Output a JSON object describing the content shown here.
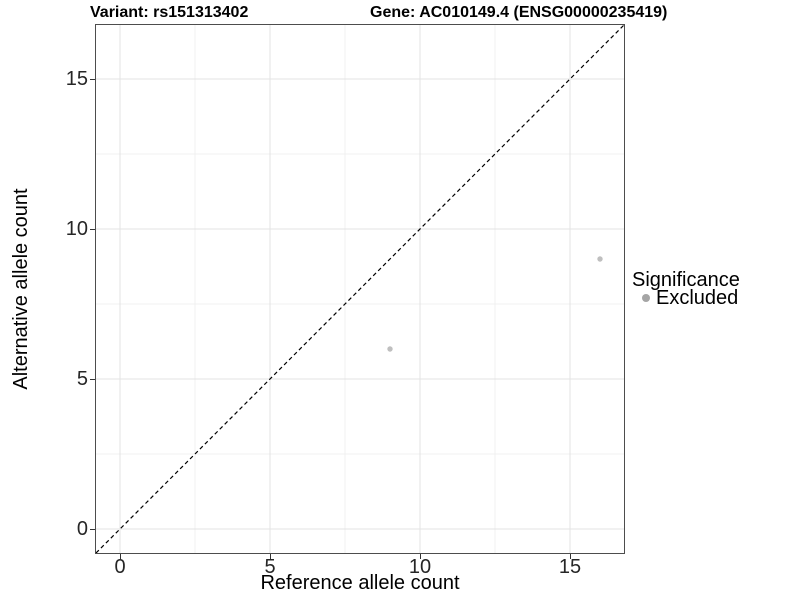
{
  "header": {
    "variant_title": "Variant: rs151313402",
    "gene_title": "Gene: AC010149.4 (ENSG00000235419)"
  },
  "axes": {
    "x_label": "Reference allele count",
    "y_label": "Alternative allele count",
    "x_tick_labels": [
      "0",
      "5",
      "10",
      "15"
    ],
    "y_tick_labels": [
      "0",
      "5",
      "10",
      "15"
    ]
  },
  "legend": {
    "title": "Significance",
    "items": [
      {
        "label": "Excluded",
        "color": "#a5a5a5"
      }
    ]
  },
  "chart_data": {
    "type": "scatter",
    "title": "Variant: rs151313402 — Gene: AC010149.4 (ENSG00000235419)",
    "xlabel": "Reference allele count",
    "ylabel": "Alternative allele count",
    "xlim": [
      -0.8,
      16.8
    ],
    "ylim": [
      -0.8,
      16.8
    ],
    "x_ticks": [
      0,
      5,
      10,
      15
    ],
    "y_ticks": [
      0,
      5,
      10,
      15
    ],
    "x_minor_gridlines": [
      2.5,
      7.5,
      12.5
    ],
    "y_minor_gridlines": [
      2.5,
      7.5,
      12.5
    ],
    "grid": "major and minor gridlines, light gray on white panel",
    "legend_position": "right",
    "legend_title": "Significance",
    "reference_line": {
      "type": "identity (y = x)",
      "style": "dashed",
      "color": "#000000"
    },
    "series": [
      {
        "name": "Excluded",
        "point_color": "#bfbfbf",
        "points": [
          {
            "x": 9,
            "y": 6
          },
          {
            "x": 16,
            "y": 9
          }
        ]
      }
    ]
  },
  "colors": {
    "background": "#ffffff",
    "panel_border": "#4d4d4d",
    "grid_major": "#e3e3e3",
    "grid_minor": "#f0f0f0",
    "tick_text": "#262626"
  }
}
